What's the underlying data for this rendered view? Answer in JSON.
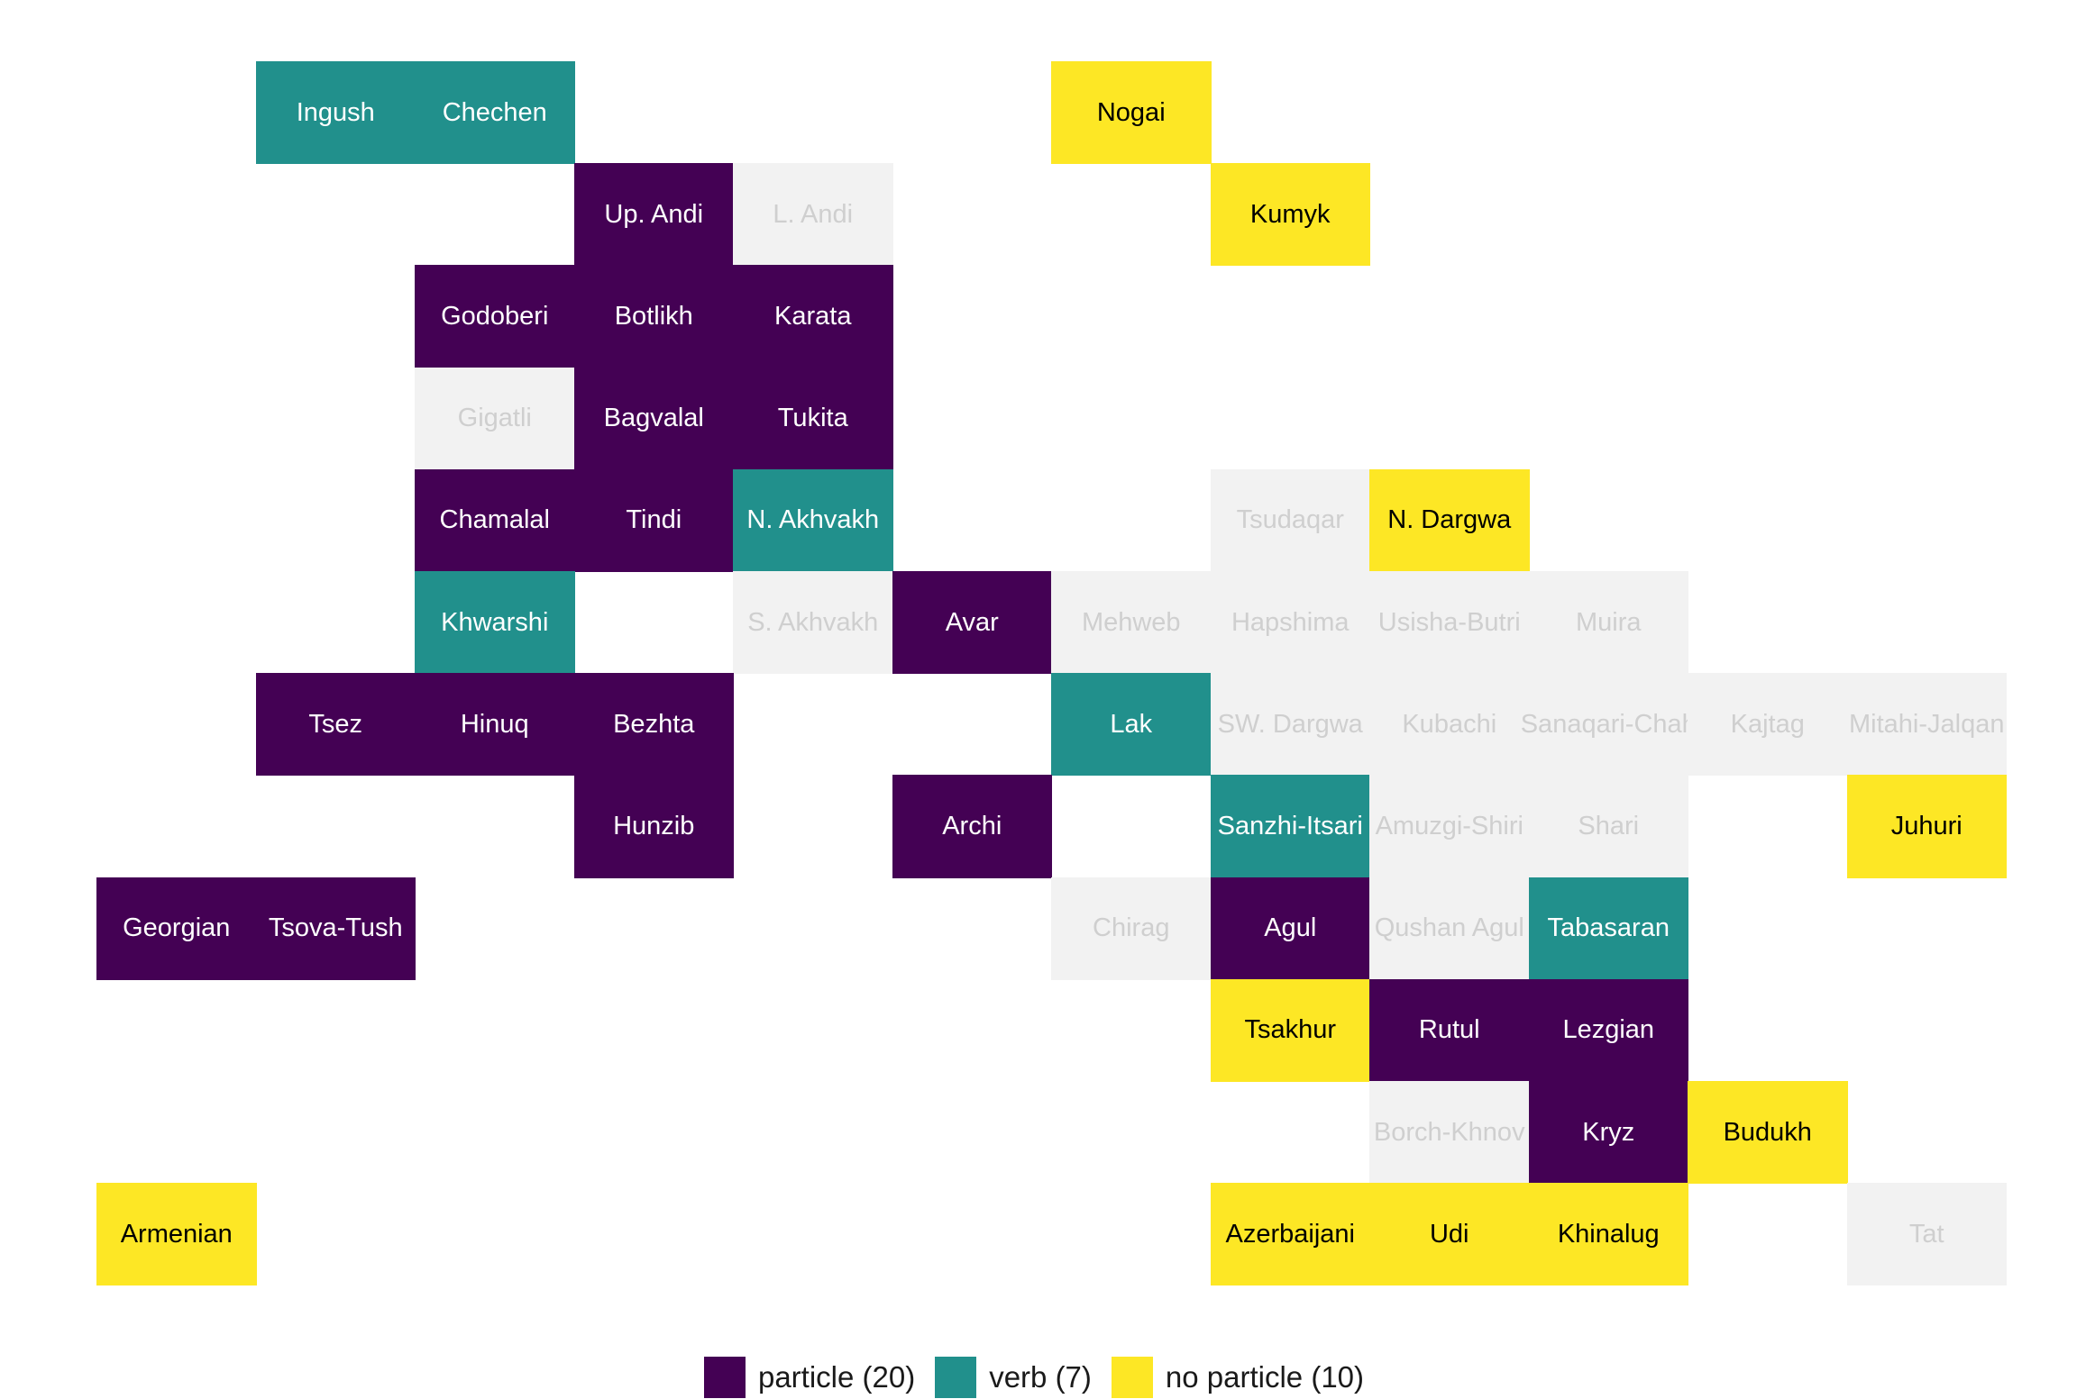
{
  "chart_data": {
    "type": "heatmap",
    "colors": {
      "particle": "#440154",
      "verb": "#21908C",
      "no particle": "#FDE725",
      "no data": "#F2F2F2"
    },
    "text_colors": {
      "particle": "#ffffff",
      "verb": "#ffffff",
      "no particle": "#000000",
      "no data": "#cfcfcf"
    },
    "legend": [
      {
        "category": "particle",
        "label": "particle (20)"
      },
      {
        "category": "verb",
        "label": "verb (7)"
      },
      {
        "category": "no particle",
        "label": "no particle (10)"
      }
    ],
    "legend_position": "bottom",
    "tiles": [
      {
        "label": "Ingush",
        "col": 1,
        "row": 0,
        "category": "verb"
      },
      {
        "label": "Chechen",
        "col": 2,
        "row": 0,
        "category": "verb"
      },
      {
        "label": "Nogai",
        "col": 6,
        "row": 0,
        "category": "no particle"
      },
      {
        "label": "Up. Andi",
        "col": 3,
        "row": 1,
        "category": "particle"
      },
      {
        "label": "L. Andi",
        "col": 4,
        "row": 1,
        "category": "no data"
      },
      {
        "label": "Kumyk",
        "col": 7,
        "row": 1,
        "category": "no particle"
      },
      {
        "label": "Godoberi",
        "col": 2,
        "row": 2,
        "category": "particle"
      },
      {
        "label": "Botlikh",
        "col": 3,
        "row": 2,
        "category": "particle"
      },
      {
        "label": "Karata",
        "col": 4,
        "row": 2,
        "category": "particle"
      },
      {
        "label": "Gigatli",
        "col": 2,
        "row": 3,
        "category": "no data"
      },
      {
        "label": "Bagvalal",
        "col": 3,
        "row": 3,
        "category": "particle"
      },
      {
        "label": "Tukita",
        "col": 4,
        "row": 3,
        "category": "particle"
      },
      {
        "label": "Chamalal",
        "col": 2,
        "row": 4,
        "category": "particle"
      },
      {
        "label": "Tindi",
        "col": 3,
        "row": 4,
        "category": "particle"
      },
      {
        "label": "N. Akhvakh",
        "col": 4,
        "row": 4,
        "category": "verb"
      },
      {
        "label": "Tsudaqar",
        "col": 7,
        "row": 4,
        "category": "no data"
      },
      {
        "label": "N. Dargwa",
        "col": 8,
        "row": 4,
        "category": "no particle"
      },
      {
        "label": "Khwarshi",
        "col": 2,
        "row": 5,
        "category": "verb"
      },
      {
        "label": "S. Akhvakh",
        "col": 4,
        "row": 5,
        "category": "no data"
      },
      {
        "label": "Avar",
        "col": 5,
        "row": 5,
        "category": "particle"
      },
      {
        "label": "Mehweb",
        "col": 6,
        "row": 5,
        "category": "no data"
      },
      {
        "label": "Hapshima",
        "col": 7,
        "row": 5,
        "category": "no data"
      },
      {
        "label": "Usisha-Butri",
        "col": 8,
        "row": 5,
        "category": "no data"
      },
      {
        "label": "Muira",
        "col": 9,
        "row": 5,
        "category": "no data"
      },
      {
        "label": "Tsez",
        "col": 1,
        "row": 6,
        "category": "particle"
      },
      {
        "label": "Hinuq",
        "col": 2,
        "row": 6,
        "category": "particle"
      },
      {
        "label": "Bezhta",
        "col": 3,
        "row": 6,
        "category": "particle"
      },
      {
        "label": "Lak",
        "col": 6,
        "row": 6,
        "category": "verb"
      },
      {
        "label": "SW. Dargwa",
        "col": 7,
        "row": 6,
        "category": "no data"
      },
      {
        "label": "Kubachi",
        "col": 8,
        "row": 6,
        "category": "no data"
      },
      {
        "label": "Sanaqari-Chah",
        "col": 9,
        "row": 6,
        "category": "no data"
      },
      {
        "label": "Kajtag",
        "col": 10,
        "row": 6,
        "category": "no data"
      },
      {
        "label": "Mitahi-Jalqan",
        "col": 11,
        "row": 6,
        "category": "no data"
      },
      {
        "label": "Hunzib",
        "col": 3,
        "row": 7,
        "category": "particle"
      },
      {
        "label": "Archi",
        "col": 5,
        "row": 7,
        "category": "particle"
      },
      {
        "label": "Sanzhi-Itsari",
        "col": 7,
        "row": 7,
        "category": "verb"
      },
      {
        "label": "Amuzgi-Shiri",
        "col": 8,
        "row": 7,
        "category": "no data"
      },
      {
        "label": "Shari",
        "col": 9,
        "row": 7,
        "category": "no data"
      },
      {
        "label": "Juhuri",
        "col": 11,
        "row": 7,
        "category": "no particle"
      },
      {
        "label": "Georgian",
        "col": 0,
        "row": 8,
        "category": "particle"
      },
      {
        "label": "Tsova-Tush",
        "col": 1,
        "row": 8,
        "category": "particle"
      },
      {
        "label": "Chirag",
        "col": 6,
        "row": 8,
        "category": "no data"
      },
      {
        "label": "Agul",
        "col": 7,
        "row": 8,
        "category": "particle"
      },
      {
        "label": "Qushan Agul",
        "col": 8,
        "row": 8,
        "category": "no data"
      },
      {
        "label": "Tabasaran",
        "col": 9,
        "row": 8,
        "category": "verb"
      },
      {
        "label": "Tsakhur",
        "col": 7,
        "row": 9,
        "category": "no particle"
      },
      {
        "label": "Rutul",
        "col": 8,
        "row": 9,
        "category": "particle"
      },
      {
        "label": "Lezgian",
        "col": 9,
        "row": 9,
        "category": "particle"
      },
      {
        "label": "Borch-Khnov",
        "col": 8,
        "row": 10,
        "category": "no data"
      },
      {
        "label": "Kryz",
        "col": 9,
        "row": 10,
        "category": "particle"
      },
      {
        "label": "Budukh",
        "col": 10,
        "row": 10,
        "category": "no particle"
      },
      {
        "label": "Armenian",
        "col": 0,
        "row": 11,
        "category": "no particle"
      },
      {
        "label": "Azerbaijani",
        "col": 7,
        "row": 11,
        "category": "no particle"
      },
      {
        "label": "Udi",
        "col": 8,
        "row": 11,
        "category": "no particle"
      },
      {
        "label": "Khinalug",
        "col": 9,
        "row": 11,
        "category": "no particle"
      },
      {
        "label": "Tat",
        "col": 11,
        "row": 11,
        "category": "no data"
      }
    ]
  }
}
